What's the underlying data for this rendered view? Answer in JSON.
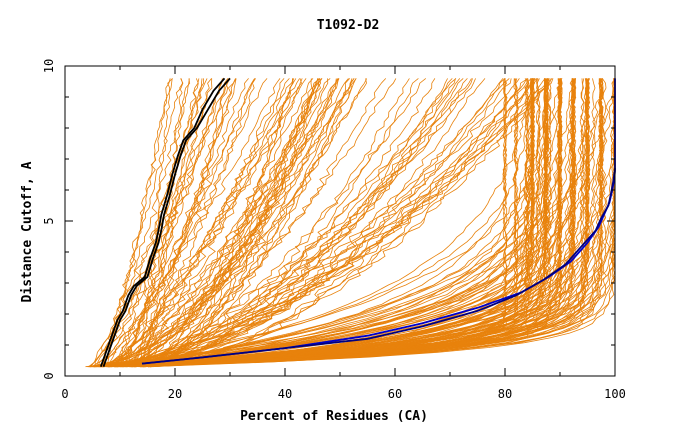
{
  "chart_data": {
    "type": "line",
    "title": "T1092-D2",
    "xlabel": "Percent of Residues (CA)",
    "ylabel": "Distance Cutoff, A",
    "xlim": [
      0,
      100
    ],
    "ylim": [
      0,
      10
    ],
    "xticks": [
      "0",
      "20",
      "40",
      "60",
      "80",
      "100"
    ],
    "yticks": [
      "0",
      "5",
      "10"
    ],
    "grid": false,
    "legend": "none",
    "colors": {
      "background_models": "#e8820c",
      "highlight_black": "#000000",
      "highlight_blue": "#0000cc"
    },
    "series": [
      {
        "color": "#000000",
        "x": [
          7,
          8,
          9,
          10,
          11,
          12,
          13,
          15,
          16,
          17,
          17.5,
          18,
          19,
          20,
          21,
          22,
          24,
          26,
          28,
          30
        ],
        "y": [
          0.3,
          0.8,
          1.3,
          1.8,
          2.1,
          2.6,
          2.9,
          3.2,
          3.8,
          4.3,
          4.7,
          5.2,
          5.8,
          6.5,
          7.1,
          7.6,
          8.0,
          8.6,
          9.2,
          9.6
        ]
      },
      {
        "color": "#000000",
        "x": [
          6.5,
          7.5,
          8.5,
          9.5,
          10.5,
          11.5,
          12.5,
          14.5,
          15.5,
          16.5,
          17,
          17.5,
          18.5,
          19.5,
          20.5,
          21.5,
          23.5,
          25,
          27,
          29
        ],
        "y": [
          0.3,
          0.8,
          1.3,
          1.8,
          2.1,
          2.6,
          2.9,
          3.2,
          3.8,
          4.3,
          4.7,
          5.2,
          5.8,
          6.5,
          7.1,
          7.6,
          8.0,
          8.6,
          9.2,
          9.6
        ]
      },
      {
        "color": "#0000cc",
        "x": [
          14,
          25,
          40,
          55,
          65,
          75,
          83,
          88,
          92,
          95,
          97,
          98,
          99,
          99.5,
          99.8,
          100,
          100
        ],
        "y": [
          0.4,
          0.6,
          0.9,
          1.3,
          1.7,
          2.2,
          2.7,
          3.2,
          3.7,
          4.3,
          4.8,
          5.2,
          5.6,
          6.0,
          6.3,
          6.6,
          9.6
        ]
      },
      {
        "color": "#000080",
        "x": [
          14,
          25,
          40,
          55,
          65,
          75,
          82,
          87,
          91,
          94,
          96.5,
          97.5,
          98.8,
          99.3,
          99.7,
          100
        ],
        "y": [
          0.4,
          0.6,
          0.9,
          1.2,
          1.6,
          2.1,
          2.6,
          3.1,
          3.6,
          4.2,
          4.7,
          5.1,
          5.5,
          5.9,
          6.3,
          6.7
        ]
      }
    ]
  }
}
